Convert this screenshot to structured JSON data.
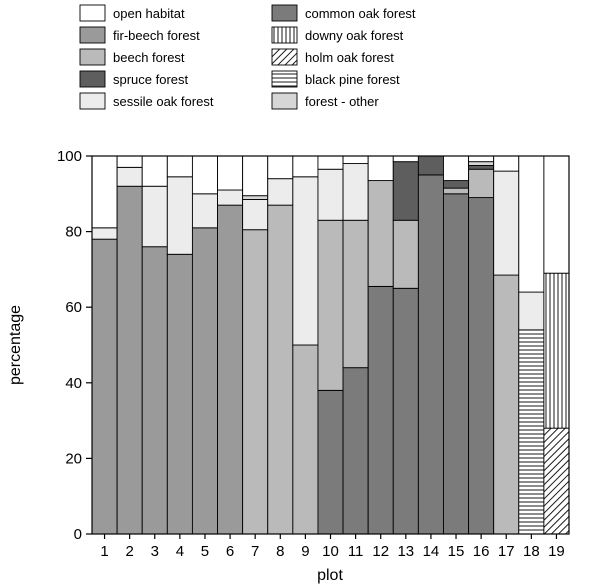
{
  "chart_data": {
    "type": "bar",
    "stacked": true,
    "xlabel": "plot",
    "ylabel": "percentage",
    "ylim": [
      0,
      100
    ],
    "yticks": [
      0,
      20,
      40,
      60,
      80,
      100
    ],
    "grid": false,
    "legend_position": "top",
    "categories": [
      "1",
      "2",
      "3",
      "4",
      "5",
      "6",
      "7",
      "8",
      "9",
      "10",
      "11",
      "12",
      "13",
      "14",
      "15",
      "16",
      "17",
      "18",
      "19"
    ],
    "series": [
      {
        "name": "holm oak forest",
        "pattern": "diagonal",
        "color": "#ffffff",
        "values": [
          0,
          0,
          0,
          0,
          0,
          0,
          0,
          0,
          0,
          0,
          0,
          0,
          0,
          0,
          0,
          0,
          0,
          0,
          28
        ]
      },
      {
        "name": "black pine forest",
        "pattern": "horizontal",
        "color": "#ffffff",
        "values": [
          0,
          0,
          0,
          0,
          0,
          0,
          0,
          0,
          0,
          0,
          0,
          0,
          0,
          0,
          0,
          0,
          0,
          54,
          0
        ]
      },
      {
        "name": "downy oak forest",
        "pattern": "vertical",
        "color": "#ffffff",
        "values": [
          0,
          0,
          0,
          0,
          0,
          0,
          0,
          0,
          0,
          0,
          0,
          0,
          0,
          0,
          0,
          0,
          0,
          0,
          41
        ]
      },
      {
        "name": "common oak forest",
        "color": "#7b7b7b",
        "values": [
          0,
          0,
          0,
          0,
          0,
          0,
          0,
          0,
          0,
          38,
          44,
          65.5,
          65,
          95,
          90,
          89,
          0,
          0,
          0
        ]
      },
      {
        "name": "fir-beech forest",
        "color": "#9a9a9a",
        "values": [
          78,
          92,
          76,
          74,
          81,
          87,
          0,
          0,
          0,
          0,
          0,
          0,
          0,
          0,
          0,
          0,
          0,
          0,
          0
        ]
      },
      {
        "name": "beech forest",
        "color": "#bababa",
        "values": [
          0,
          0,
          0,
          0,
          0,
          0,
          80.5,
          87,
          50,
          45,
          39,
          28,
          18,
          0,
          1.5,
          7.5,
          68.5,
          0,
          0
        ]
      },
      {
        "name": "spruce forest",
        "color": "#5e5e5e",
        "values": [
          0,
          0,
          0,
          0,
          0,
          0,
          0,
          0,
          0,
          0,
          0,
          0,
          15.5,
          5,
          2,
          1,
          0,
          0,
          0
        ]
      },
      {
        "name": "sessile oak forest",
        "color": "#ececec",
        "values": [
          3,
          5,
          16,
          20.5,
          9,
          4,
          8,
          7,
          44.5,
          13.5,
          15,
          0,
          0,
          0,
          0,
          0,
          27.5,
          10,
          0
        ]
      },
      {
        "name": "forest - other",
        "color": "#d6d6d6",
        "values": [
          0,
          0,
          0,
          0,
          0,
          0,
          1,
          0,
          0,
          0,
          0,
          0,
          0,
          0,
          0,
          1,
          0,
          0,
          0
        ]
      },
      {
        "name": "open habitat",
        "color": "#ffffff",
        "values": [
          19,
          3,
          8,
          5.5,
          10,
          9,
          10.5,
          6,
          5.5,
          3.5,
          2,
          6.5,
          1.5,
          0,
          6.5,
          1.5,
          4,
          36,
          31
        ]
      }
    ],
    "legend_order": [
      "open habitat",
      "fir-beech forest",
      "beech forest",
      "spruce forest",
      "sessile oak forest",
      "common oak forest",
      "downy oak forest",
      "holm oak forest",
      "black pine forest",
      "forest - other"
    ]
  }
}
